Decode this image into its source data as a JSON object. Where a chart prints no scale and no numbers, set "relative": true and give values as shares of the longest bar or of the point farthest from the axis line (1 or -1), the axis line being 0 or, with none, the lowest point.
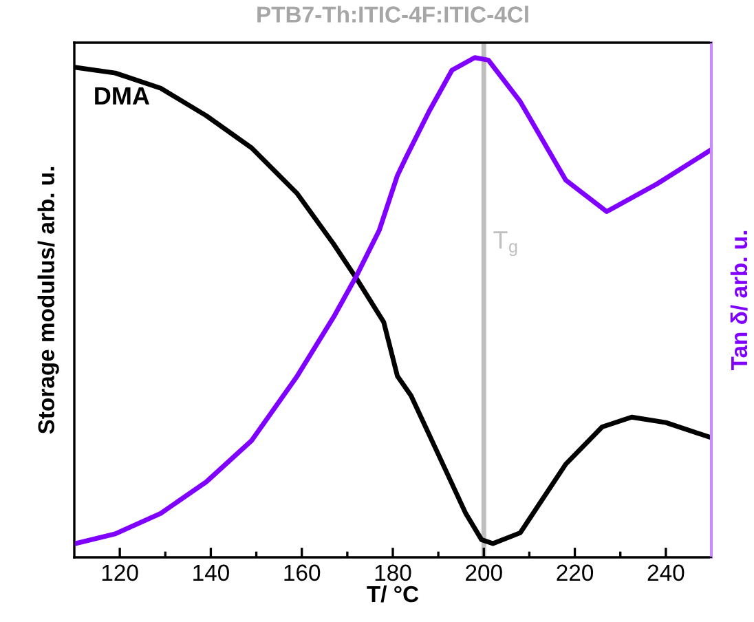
{
  "chart_data": {
    "type": "line",
    "title": "PTB7-Th:ITIC-4F:ITIC-4Cl",
    "xlabel": "T/ °C",
    "ylabel": "Storage modulus/ arb. u.",
    "y2label": "Tan δ/ arb. u.",
    "relative": true,
    "xlim": [
      110,
      250
    ],
    "xticks": [
      120,
      {
        "value": 130,
        "label": null
      },
      140,
      {
        "value": 150,
        "label": null
      },
      160,
      {
        "value": 170,
        "label": null
      },
      180,
      {
        "value": 190,
        "label": null
      },
      200,
      {
        "value": 210,
        "label": null
      },
      220,
      {
        "value": 230,
        "label": null
      },
      240
    ],
    "tick_labels": "x",
    "grid": false,
    "legend": false,
    "marker": "none",
    "line_style": "solid",
    "annotations": [
      "DMA"
    ],
    "ref_lines": [
      {
        "axis": "x",
        "value": 200,
        "label": "T$_{g}$",
        "color": "#bfbfbf"
      }
    ],
    "series": [
      {
        "color": "#000000",
        "x": [
          110,
          119,
          129,
          139,
          149,
          159,
          167,
          172,
          178,
          181,
          184,
          190,
          196,
          199.5,
          202,
          208,
          218,
          226,
          232.5,
          240,
          250
        ],
        "values": [
          1.0,
          0.988,
          0.957,
          0.901,
          0.835,
          0.742,
          0.639,
          0.569,
          0.48,
          0.37,
          0.33,
          0.21,
          0.09,
          0.036,
          0.028,
          0.05,
          0.19,
          0.266,
          0.286,
          0.275,
          0.244
        ]
      },
      {
        "color": "#8000ff",
        "axis": "y2",
        "x": [
          110,
          119,
          129,
          139,
          149,
          159,
          167,
          172,
          177,
          181,
          183,
          188,
          193,
          198,
          201,
          208,
          218,
          227,
          238,
          250
        ],
        "values": [
          0.027,
          0.047,
          0.088,
          0.151,
          0.234,
          0.363,
          0.481,
          0.563,
          0.654,
          0.764,
          0.802,
          0.893,
          0.975,
          1.0,
          0.995,
          0.912,
          0.755,
          0.692,
          0.747,
          0.816
        ]
      }
    ]
  }
}
